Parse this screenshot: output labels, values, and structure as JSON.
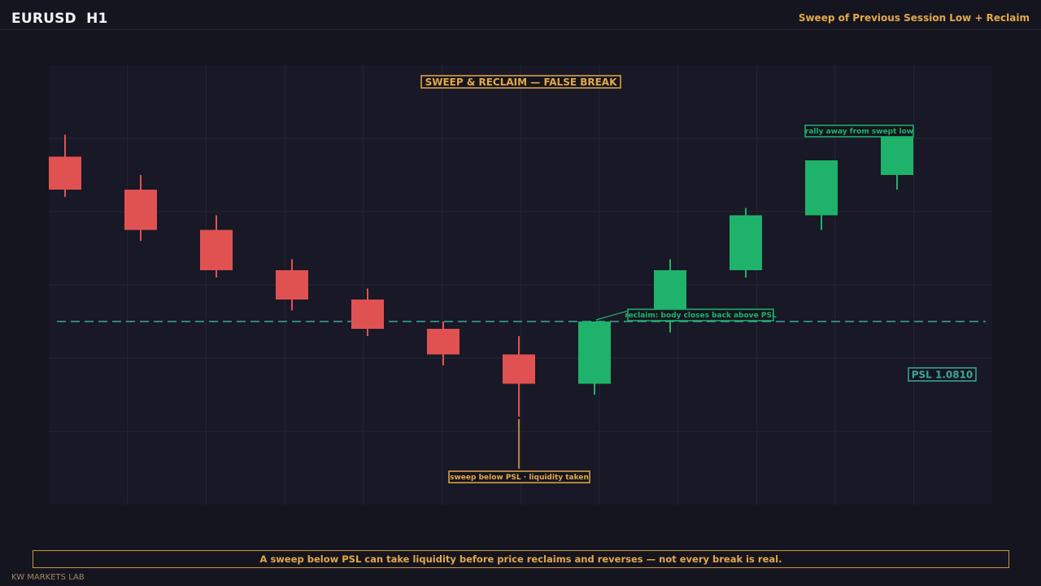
{
  "header": {
    "symbol": "EURUSD  H1",
    "subtitle": "Sweep of Previous Session Low + Reclaim"
  },
  "footer": {
    "note": "A sweep below PSL can take liquidity before price reclaims and reverses — not every break is real.",
    "brand": "KW MARKETS LAB"
  },
  "colors": {
    "bear": "#e05252",
    "bull": "#1fb26b",
    "accent": "#e3a94a",
    "psl": "#3aa89a",
    "grid": "#262634",
    "panel": "#181826"
  },
  "chart_data": {
    "type": "candlestick",
    "title": "SWEEP & RECLAIM — FALSE BREAK",
    "ylim": [
      1.076,
      1.088
    ],
    "grid": true,
    "candles": [
      {
        "open": 1.0855,
        "high": 1.0861,
        "low": 1.0844,
        "close": 1.0846,
        "dir": "bear"
      },
      {
        "open": 1.0846,
        "high": 1.085,
        "low": 1.0832,
        "close": 1.0835,
        "dir": "bear"
      },
      {
        "open": 1.0835,
        "high": 1.0839,
        "low": 1.0822,
        "close": 1.0824,
        "dir": "bear"
      },
      {
        "open": 1.0824,
        "high": 1.0827,
        "low": 1.0813,
        "close": 1.0816,
        "dir": "bear"
      },
      {
        "open": 1.0816,
        "high": 1.0819,
        "low": 1.0806,
        "close": 1.0808,
        "dir": "bear"
      },
      {
        "open": 1.0808,
        "high": 1.081,
        "low": 1.0798,
        "close": 1.0801,
        "dir": "bear"
      },
      {
        "open": 1.0801,
        "high": 1.0806,
        "low": 1.0784,
        "close": 1.0793,
        "dir": "bear"
      },
      {
        "open": 1.0793,
        "high": 1.081,
        "low": 1.079,
        "close": 1.081,
        "dir": "bull"
      },
      {
        "open": 1.081,
        "high": 1.0827,
        "low": 1.0807,
        "close": 1.0824,
        "dir": "bull"
      },
      {
        "open": 1.0824,
        "high": 1.0841,
        "low": 1.0822,
        "close": 1.0839,
        "dir": "bull"
      },
      {
        "open": 1.0839,
        "high": 1.0854,
        "low": 1.0835,
        "close": 1.0854,
        "dir": "bull"
      },
      {
        "open": 1.085,
        "high": 1.0862,
        "low": 1.0846,
        "close": 1.0862,
        "dir": "bull"
      }
    ],
    "psl": {
      "value": 1.081,
      "label": "PSL 1.0810"
    },
    "annotations": [
      {
        "candle": 6,
        "text": "sweep below PSL  ·  liquidity taken"
      },
      {
        "candle": 7,
        "text": "reclaim: body closes back above PSL"
      },
      {
        "candle": 11,
        "text": "rally away from swept low"
      }
    ]
  }
}
